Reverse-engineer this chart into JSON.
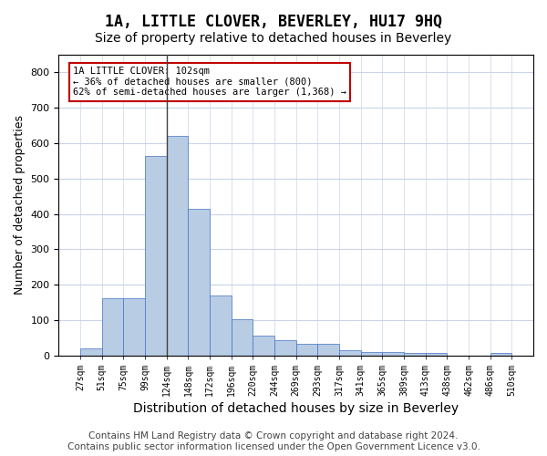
{
  "title": "1A, LITTLE CLOVER, BEVERLEY, HU17 9HQ",
  "subtitle": "Size of property relative to detached houses in Beverley",
  "xlabel": "Distribution of detached houses by size in Beverley",
  "ylabel": "Number of detached properties",
  "bar_values": [
    20,
    163,
    163,
    563,
    620,
    415,
    170,
    103,
    55,
    43,
    33,
    33,
    15,
    10,
    10,
    8,
    8,
    0,
    0,
    8
  ],
  "bar_labels": [
    "27sqm",
    "51sqm",
    "75sqm",
    "99sqm",
    "124sqm",
    "148sqm",
    "172sqm",
    "196sqm",
    "220sqm",
    "244sqm",
    "269sqm",
    "293sqm",
    "317sqm",
    "341sqm",
    "365sqm",
    "389sqm",
    "413sqm",
    "438sqm",
    "462sqm",
    "486sqm",
    "510sqm"
  ],
  "bar_color": "#b8cce4",
  "bar_edge_color": "#4472c4",
  "highlight_bar_index": 3,
  "highlight_line_color": "#404040",
  "annotation_text": "1A LITTLE CLOVER: 102sqm\n← 36% of detached houses are smaller (800)\n62% of semi-detached houses are larger (1,368) →",
  "annotation_box_color": "#c00000",
  "annotation_text_color": "#000000",
  "ylim": [
    0,
    850
  ],
  "yticks": [
    0,
    100,
    200,
    300,
    400,
    500,
    600,
    700,
    800
  ],
  "grid_color": "#c8d4e8",
  "background_color": "#ffffff",
  "footer": "Contains HM Land Registry data © Crown copyright and database right 2024.\nContains public sector information licensed under the Open Government Licence v3.0.",
  "title_fontsize": 12,
  "subtitle_fontsize": 10,
  "xlabel_fontsize": 10,
  "ylabel_fontsize": 9,
  "footer_fontsize": 7.5
}
